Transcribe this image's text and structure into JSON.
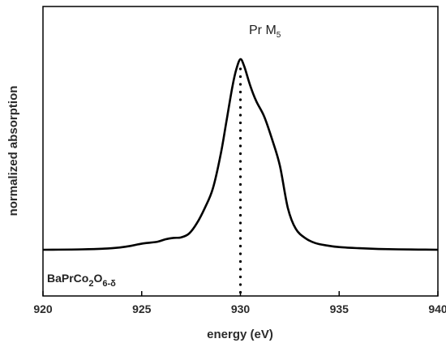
{
  "chart_data": {
    "type": "line",
    "title": "",
    "xlabel": "energy (eV)",
    "ylabel": "normalized absorption",
    "xlim": [
      920,
      940
    ],
    "ylim": [
      0,
      1.1
    ],
    "x_ticks": [
      920,
      925,
      930,
      935,
      940
    ],
    "grid": false,
    "y_ticks_visible": false,
    "annotations": {
      "edge_label": {
        "main": "Pr M",
        "subscript": "5"
      },
      "sample_label": {
        "part1": "BaPrCo",
        "sub1": "2",
        "part2": "O",
        "sub2": "6-δ"
      }
    },
    "marker_line": {
      "x": 930.0,
      "style": "dotted"
    },
    "series": [
      {
        "x": [
          920.0,
          922.0,
          923.5,
          924.3,
          924.8,
          925.2,
          925.8,
          926.2,
          926.6,
          927.0,
          927.4,
          927.8,
          928.2,
          928.6,
          929.0,
          929.3,
          929.6,
          929.8,
          930.0,
          930.2,
          930.5,
          930.8,
          931.2,
          931.6,
          932.0,
          932.4,
          932.8,
          933.3,
          933.8,
          934.4,
          935.0,
          936.0,
          937.0,
          938.0,
          939.0,
          940.0
        ],
        "y": [
          0.0,
          0.002,
          0.008,
          0.018,
          0.028,
          0.035,
          0.042,
          0.055,
          0.062,
          0.065,
          0.085,
          0.14,
          0.22,
          0.32,
          0.5,
          0.68,
          0.86,
          0.95,
          1.0,
          0.96,
          0.86,
          0.78,
          0.7,
          0.58,
          0.44,
          0.22,
          0.11,
          0.06,
          0.035,
          0.022,
          0.014,
          0.008,
          0.004,
          0.002,
          0.001,
          0.0
        ]
      }
    ]
  }
}
